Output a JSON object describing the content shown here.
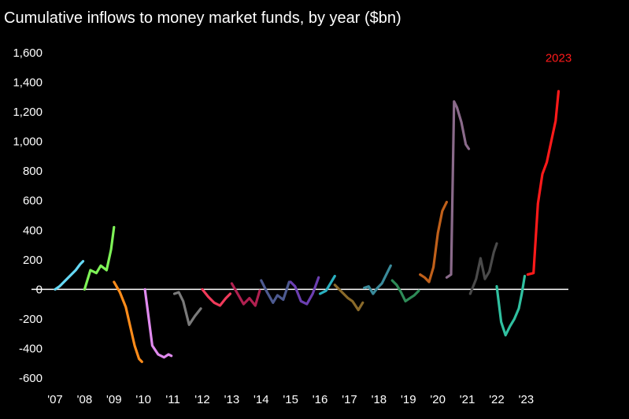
{
  "chart_data": {
    "type": "line",
    "title": "Cumulative inflows to money market funds, by year ($bn)",
    "xlabel": "",
    "ylabel": "",
    "xlim": [
      2007,
      2024.3
    ],
    "ylim": [
      -600,
      1600
    ],
    "y_ticks": [
      1600,
      1400,
      1200,
      1000,
      800,
      600,
      400,
      200,
      0,
      -200,
      -400,
      -600
    ],
    "y_tick_labels": [
      "1,600",
      "1,400",
      "1,200",
      "1,000",
      "800",
      "600",
      "400",
      "200",
      "0",
      "-200",
      "-400",
      "-600"
    ],
    "x_ticks": [
      2007,
      2008,
      2009,
      2010,
      2011,
      2012,
      2013,
      2014,
      2015,
      2016,
      2017,
      2018,
      2019,
      2020,
      2021,
      2022,
      2023
    ],
    "x_tick_labels": [
      "'07",
      "'08",
      "'09",
      "'10",
      "'11",
      "'12",
      "'13",
      "'14",
      "'15",
      "'16",
      "'17",
      "'18",
      "'19",
      "'20",
      "'21",
      "'22",
      "'23"
    ],
    "grid": false,
    "zero_line": true,
    "annotations": [
      {
        "text": "2023",
        "x": 2024.1,
        "y": 1540,
        "color": "#ff1a1a"
      }
    ],
    "series": [
      {
        "color": "#66d9f5",
        "x": [
          2007.0,
          2007.15,
          2007.3,
          2007.5,
          2007.7,
          2007.85,
          2007.95
        ],
        "y": [
          0,
          20,
          50,
          90,
          130,
          170,
          190
        ]
      },
      {
        "color": "#7ef257",
        "x": [
          2008.0,
          2008.2,
          2008.4,
          2008.55,
          2008.75,
          2008.9,
          2009.0
        ],
        "y": [
          0,
          130,
          110,
          160,
          130,
          270,
          420
        ]
      },
      {
        "color": "#ff8c1a",
        "x": [
          2009.0,
          2009.2,
          2009.4,
          2009.55,
          2009.7,
          2009.85,
          2009.95
        ],
        "y": [
          50,
          -20,
          -120,
          -250,
          -380,
          -470,
          -490
        ]
      },
      {
        "color": "#e08aee",
        "x": [
          2010.05,
          2010.15,
          2010.3,
          2010.5,
          2010.7,
          2010.85,
          2010.95
        ],
        "y": [
          0,
          -150,
          -380,
          -440,
          -460,
          -440,
          -450
        ]
      },
      {
        "color": "#7a7a7a",
        "x": [
          2011.05,
          2011.2,
          2011.35,
          2011.55,
          2011.75,
          2011.95
        ],
        "y": [
          -30,
          -20,
          -80,
          -240,
          -180,
          -130
        ]
      },
      {
        "color": "#f03a5a",
        "x": [
          2012.0,
          2012.2,
          2012.4,
          2012.6,
          2012.8,
          2012.95
        ],
        "y": [
          0,
          -50,
          -90,
          -110,
          -60,
          -30
        ]
      },
      {
        "color": "#b02050",
        "x": [
          2013.0,
          2013.2,
          2013.4,
          2013.6,
          2013.8,
          2013.95
        ],
        "y": [
          40,
          -30,
          -100,
          -60,
          -110,
          -10
        ]
      },
      {
        "color": "#4d5a90",
        "x": [
          2014.0,
          2014.2,
          2014.4,
          2014.55,
          2014.75,
          2014.95
        ],
        "y": [
          60,
          -20,
          -90,
          -40,
          -70,
          50
        ]
      },
      {
        "color": "#6b3fb0",
        "x": [
          2015.0,
          2015.15,
          2015.35,
          2015.55,
          2015.75,
          2015.95
        ],
        "y": [
          50,
          20,
          -80,
          -100,
          -30,
          80
        ]
      },
      {
        "color": "#2ab0c0",
        "x": [
          2016.0,
          2016.2,
          2016.35,
          2016.5
        ],
        "y": [
          -30,
          -10,
          40,
          90
        ]
      },
      {
        "color": "#8a6a2a",
        "x": [
          2016.5,
          2016.75,
          2016.95,
          2017.1,
          2017.3,
          2017.45
        ],
        "y": [
          30,
          -20,
          -60,
          -80,
          -140,
          -90
        ]
      },
      {
        "color": "#3a8a9a",
        "x": [
          2017.5,
          2017.65,
          2017.8,
          2017.95,
          2018.1,
          2018.25,
          2018.4
        ],
        "y": [
          10,
          20,
          -30,
          10,
          40,
          100,
          160
        ]
      },
      {
        "color": "#2e8b57",
        "x": [
          2018.45,
          2018.6,
          2018.75,
          2018.9,
          2019.05,
          2019.2,
          2019.35
        ],
        "y": [
          60,
          30,
          -20,
          -80,
          -60,
          -40,
          -10
        ]
      },
      {
        "color": "#c0601a",
        "x": [
          2019.4,
          2019.55,
          2019.7,
          2019.85,
          2020.0,
          2020.15,
          2020.3
        ],
        "y": [
          100,
          80,
          50,
          150,
          380,
          530,
          590
        ]
      },
      {
        "color": "#8a6a8a",
        "x": [
          2020.3,
          2020.45,
          2020.55,
          2020.65,
          2020.8,
          2020.95,
          2021.05
        ],
        "y": [
          80,
          100,
          1270,
          1230,
          1130,
          980,
          950
        ]
      },
      {
        "color": "#4a4a4a",
        "x": [
          2021.1,
          2021.3,
          2021.45,
          2021.6,
          2021.75,
          2021.9,
          2022.0
        ],
        "y": [
          -30,
          70,
          210,
          70,
          120,
          250,
          310
        ]
      },
      {
        "color": "#30c0a0",
        "x": [
          2022.0,
          2022.15,
          2022.3,
          2022.45,
          2022.6,
          2022.75,
          2022.85,
          2022.95
        ],
        "y": [
          20,
          -220,
          -310,
          -250,
          -200,
          -130,
          -30,
          90
        ]
      },
      {
        "color": "#ff1a1a",
        "x": [
          2023.05,
          2023.25,
          2023.4,
          2023.55,
          2023.7,
          2023.85,
          2024.0,
          2024.1
        ],
        "y": [
          100,
          110,
          580,
          780,
          860,
          1000,
          1140,
          1340
        ]
      }
    ]
  }
}
